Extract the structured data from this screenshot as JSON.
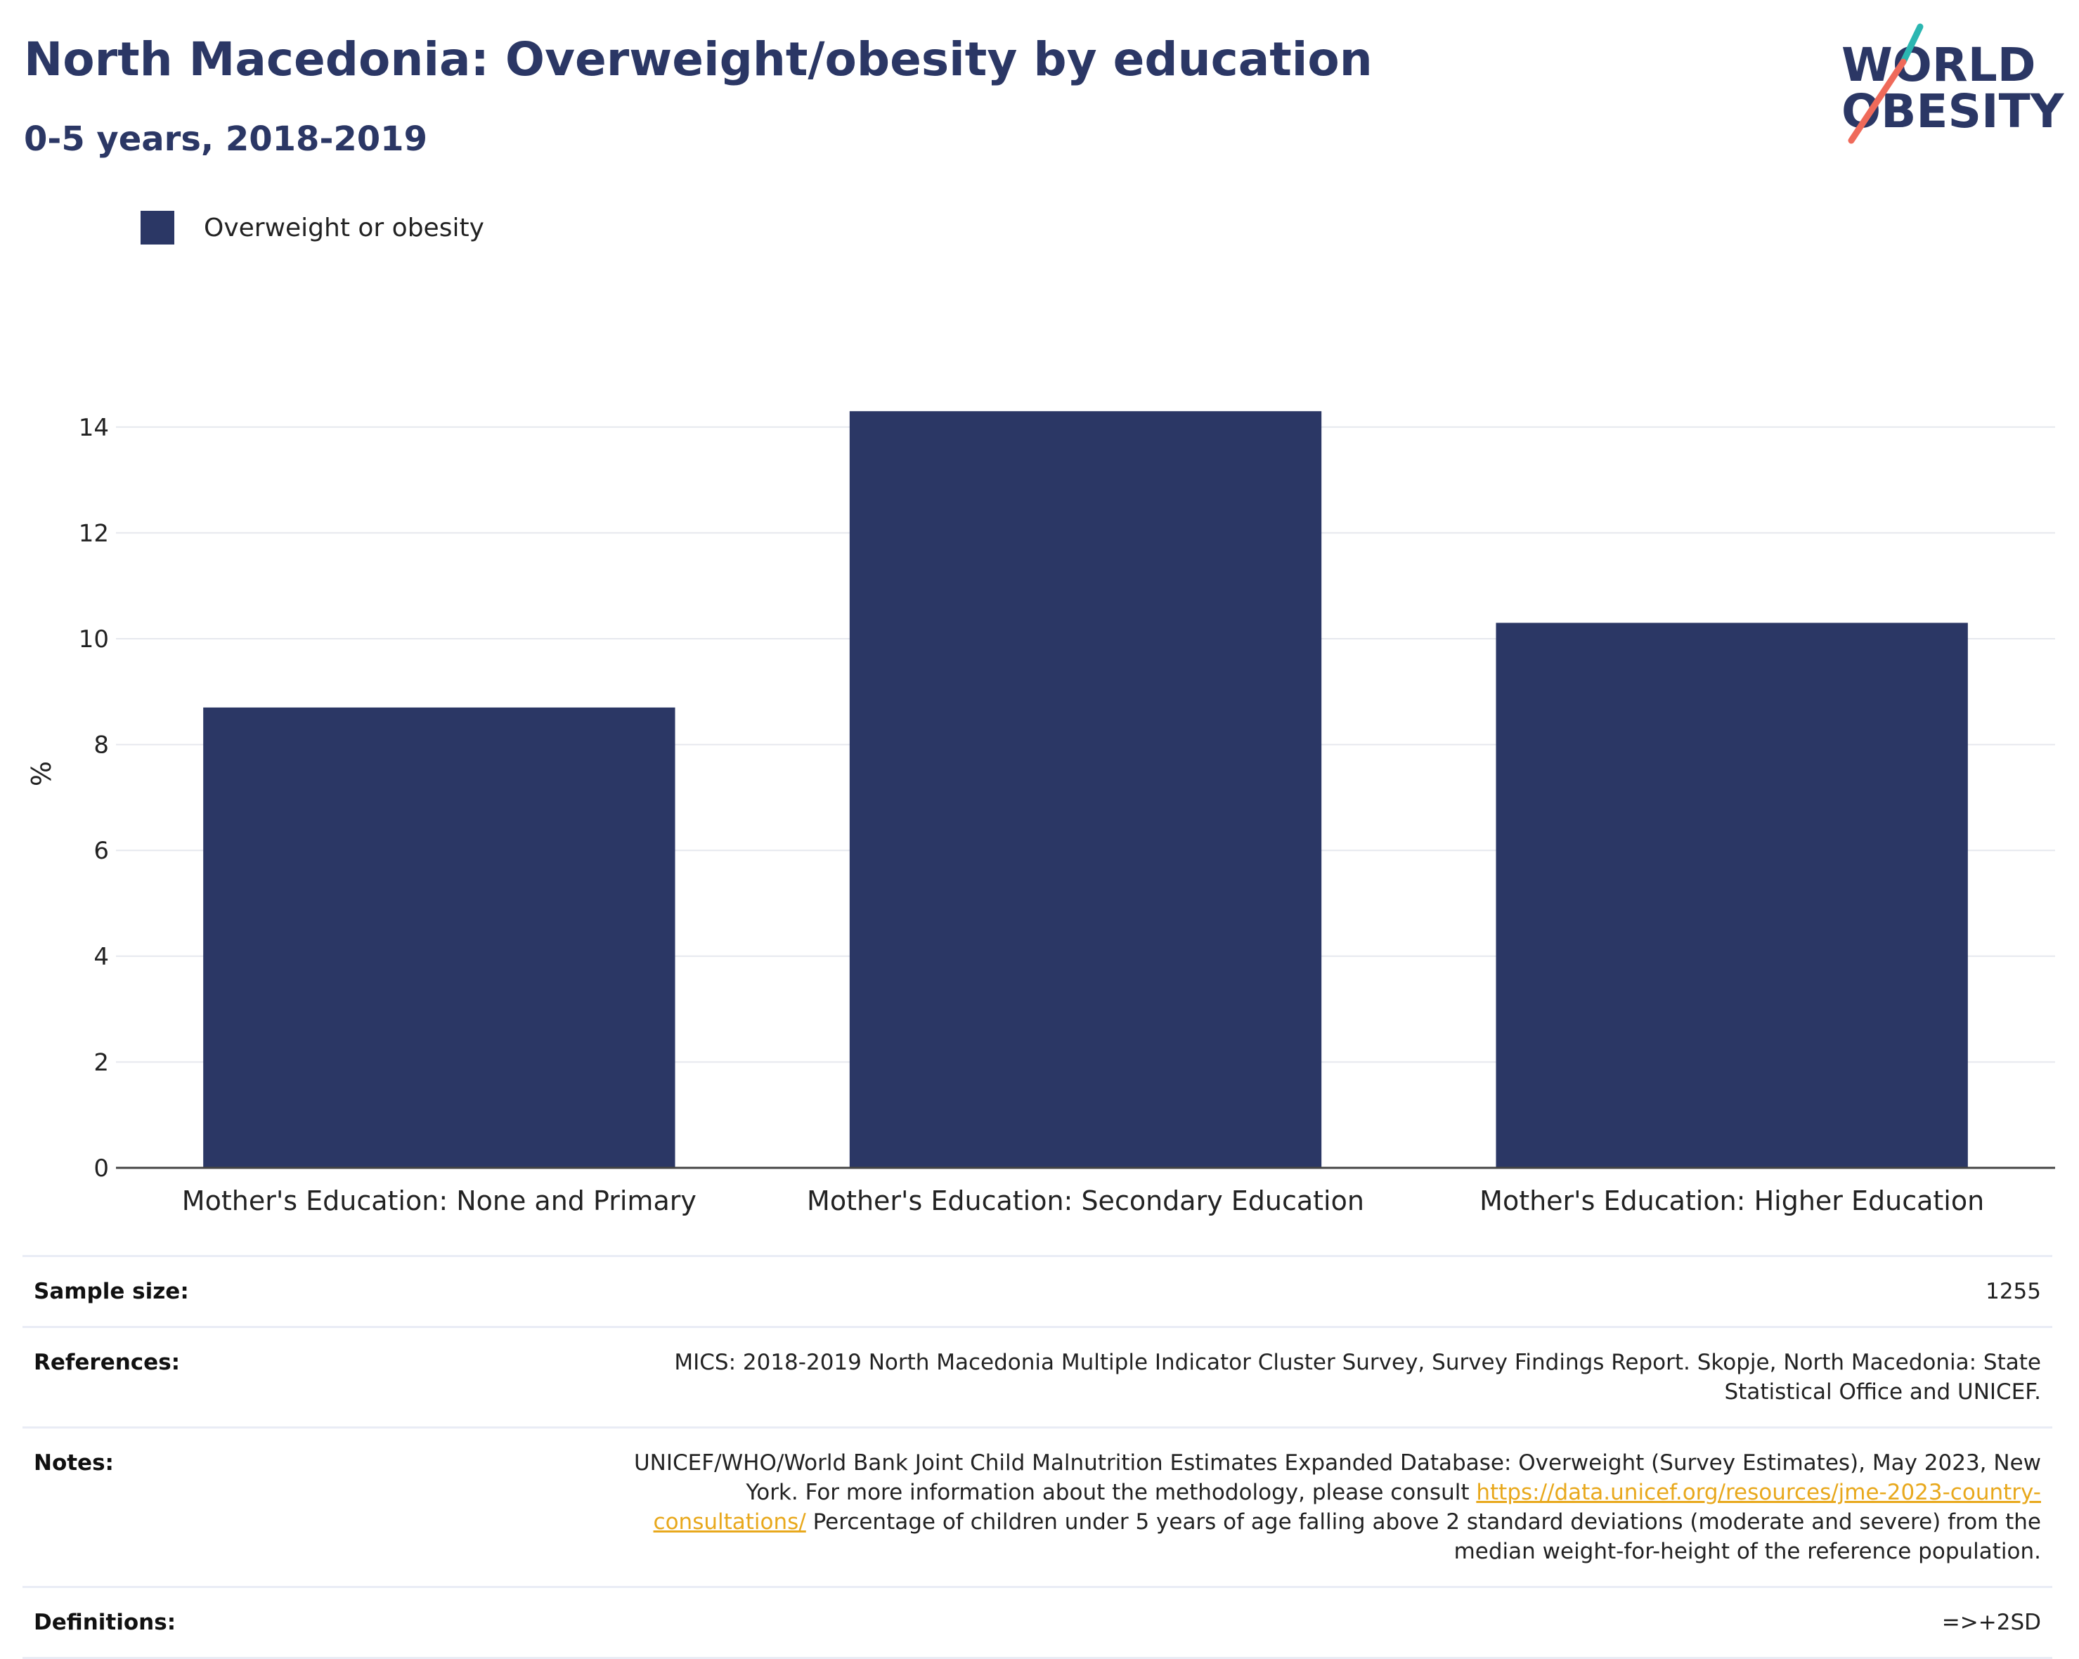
{
  "header": {
    "title": "North Macedonia: Overweight/obesity by education",
    "subtitle": "0-5 years, 2018-2019"
  },
  "logo": {
    "line1": "WORLD",
    "line2": "OBESITY"
  },
  "colors": {
    "bar": "#2b3765",
    "title": "#2b3765",
    "link": "#e8a81c",
    "logo_teal": "#2bb6b1",
    "logo_coral": "#ef6a5a"
  },
  "chart_data": {
    "type": "bar",
    "categories": [
      "Mother's Education: None and Primary",
      "Mother's Education: Secondary Education",
      "Mother's Education: Higher Education"
    ],
    "series": [
      {
        "name": "Overweight or obesity",
        "values": [
          8.7,
          14.3,
          10.3
        ]
      }
    ],
    "ylabel": "%",
    "ylim": [
      0,
      14.9
    ],
    "yticks": [
      0,
      2,
      4,
      6,
      8,
      10,
      12,
      14
    ],
    "grid": true,
    "legend": "top-left"
  },
  "info": {
    "sample_size": {
      "label": "Sample size:",
      "value": "1255"
    },
    "references": {
      "label": "References:",
      "value": "MICS: 2018-2019 North Macedonia Multiple Indicator Cluster Survey, Survey Findings Report. Skopje, North Macedonia: State Statistical Office and UNICEF."
    },
    "notes": {
      "label": "Notes:",
      "text_before": "UNICEF/WHO/World Bank Joint Child Malnutrition Estimates Expanded Database: Overweight (Survey Estimates), May 2023, New York. For more information about the methodology, please consult ",
      "link": "https://data.unicef.org/resources/jme-2023-country-consultations/",
      "text_after": " Percentage of children under 5 years of age falling above 2 standard deviations (moderate and severe) from the median weight-for-height of the reference population."
    },
    "definitions": {
      "label": "Definitions:",
      "value": "=>+2SD"
    }
  }
}
